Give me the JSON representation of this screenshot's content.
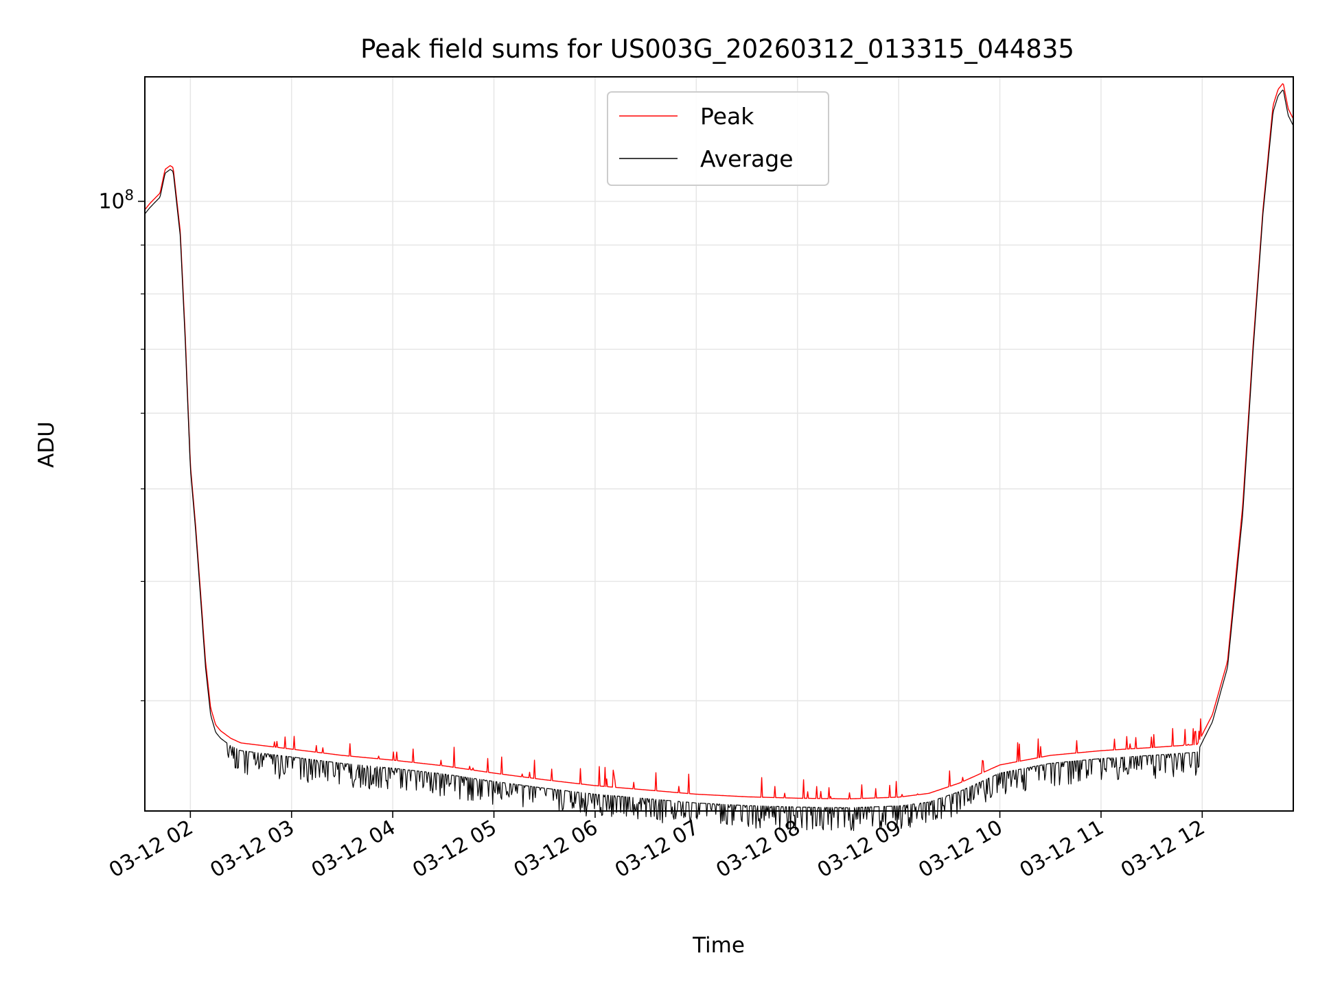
{
  "chart_data": {
    "type": "line",
    "title": "Peak field sums for US003G_20260312_013315_044835",
    "xlabel": "Time",
    "ylabel": "ADU",
    "yscale": "log",
    "ylim": [
      23000000,
      135000000
    ],
    "xlim_hours": [
      1.55,
      12.9
    ],
    "grid": true,
    "legend_position": "top-center",
    "x_tick_hours": [
      2,
      3,
      4,
      5,
      6,
      7,
      8,
      9,
      10,
      11,
      12
    ],
    "x_tick_labels": [
      "03-12 02",
      "03-12 03",
      "03-12 04",
      "03-12 05",
      "03-12 06",
      "03-12 07",
      "03-12 08",
      "03-12 09",
      "03-12 10",
      "03-12 11",
      "03-12 12"
    ],
    "y_major_ticks": [
      {
        "value": 100000000,
        "base": "10",
        "exponent": "8"
      }
    ],
    "y_minor_ticks": [
      30000000,
      40000000,
      50000000,
      60000000,
      70000000,
      80000000,
      90000000
    ],
    "series": [
      {
        "name": "Peak",
        "color": "#ff0000",
        "x_hours": [
          1.55,
          1.6,
          1.7,
          1.75,
          1.8,
          1.83,
          1.9,
          1.95,
          2.0,
          2.05,
          2.1,
          2.15,
          2.2,
          2.25,
          2.3,
          2.4,
          2.5,
          2.75,
          3.0,
          3.5,
          4.0,
          4.5,
          5.0,
          5.5,
          6.0,
          6.5,
          7.0,
          7.5,
          8.0,
          8.5,
          9.0,
          9.3,
          9.6,
          10.0,
          10.5,
          11.0,
          11.5,
          11.95,
          12.1,
          12.25,
          12.4,
          12.5,
          12.6,
          12.7,
          12.75,
          12.8,
          12.85,
          12.9
        ],
        "values": [
          98000000,
          99500000,
          102000000,
          108000000,
          109000000,
          108500000,
          93000000,
          72000000,
          53000000,
          46000000,
          39000000,
          33000000,
          29500000,
          28300000,
          27900000,
          27400000,
          27100000,
          26900000,
          26700000,
          26300000,
          26000000,
          25650000,
          25200000,
          24800000,
          24450000,
          24200000,
          23950000,
          23800000,
          23720000,
          23680000,
          23780000,
          24000000,
          24600000,
          25700000,
          26300000,
          26600000,
          26800000,
          27000000,
          29000000,
          33000000,
          48000000,
          70000000,
          98000000,
          126000000,
          131000000,
          133000000,
          125000000,
          122000000
        ]
      },
      {
        "name": "Average",
        "color": "#000000",
        "x_hours": [
          1.55,
          1.6,
          1.7,
          1.75,
          1.8,
          1.83,
          1.9,
          1.95,
          2.0,
          2.05,
          2.1,
          2.15,
          2.2,
          2.25,
          2.3,
          2.4,
          2.5,
          2.75,
          3.0,
          3.5,
          4.0,
          4.5,
          5.0,
          5.5,
          6.0,
          6.5,
          7.0,
          7.5,
          8.0,
          8.5,
          9.0,
          9.3,
          9.6,
          10.0,
          10.5,
          11.0,
          11.5,
          11.95,
          12.1,
          12.25,
          12.4,
          12.5,
          12.6,
          12.7,
          12.75,
          12.8,
          12.85,
          12.9
        ],
        "values": [
          97000000,
          98500000,
          101000000,
          107000000,
          108000000,
          107500000,
          92000000,
          71000000,
          52500000,
          45500000,
          38500000,
          32500000,
          29000000,
          27800000,
          27400000,
          26900000,
          26600000,
          26400000,
          26200000,
          25800000,
          25500000,
          25150000,
          24700000,
          24300000,
          23950000,
          23700000,
          23450000,
          23300000,
          23220000,
          23180000,
          23280000,
          23500000,
          24100000,
          25200000,
          25800000,
          26100000,
          26300000,
          26500000,
          28500000,
          32500000,
          47000000,
          69000000,
          97000000,
          124000000,
          129000000,
          131000000,
          123000000,
          120000000
        ]
      }
    ]
  }
}
